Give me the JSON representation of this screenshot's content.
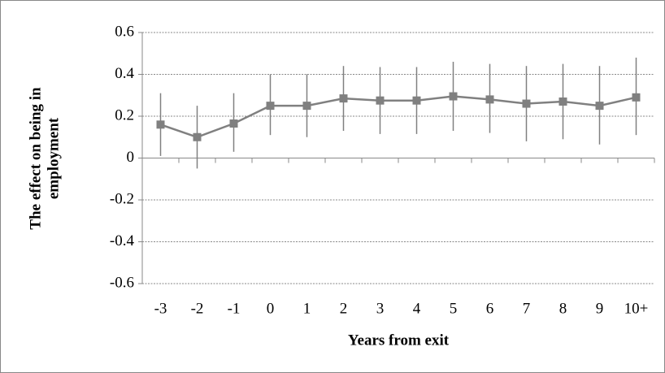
{
  "chart_data": {
    "type": "line",
    "xlabel": "Years from exit",
    "ylabel": [
      "The effect on being in",
      "employment"
    ],
    "categories": [
      "-3",
      "-2",
      "-1",
      "0",
      "1",
      "2",
      "3",
      "4",
      "5",
      "6",
      "7",
      "8",
      "9",
      "10+"
    ],
    "series": [
      {
        "color": "#808080",
        "values": [
          0.16,
          0.1,
          0.165,
          0.25,
          0.25,
          0.285,
          0.275,
          0.275,
          0.295,
          0.28,
          0.26,
          0.27,
          0.25,
          0.29
        ],
        "lower": [
          0.01,
          -0.05,
          0.03,
          0.11,
          0.1,
          0.13,
          0.115,
          0.115,
          0.13,
          0.12,
          0.08,
          0.09,
          0.065,
          0.11
        ],
        "upper": [
          0.31,
          0.25,
          0.31,
          0.4,
          0.4,
          0.44,
          0.435,
          0.435,
          0.46,
          0.45,
          0.44,
          0.45,
          0.44,
          0.48
        ]
      }
    ],
    "ylim": [
      -0.6,
      0.6
    ],
    "yticks": [
      -0.6,
      -0.4,
      -0.2,
      0,
      0.2,
      0.4,
      0.6
    ],
    "grid": true
  }
}
